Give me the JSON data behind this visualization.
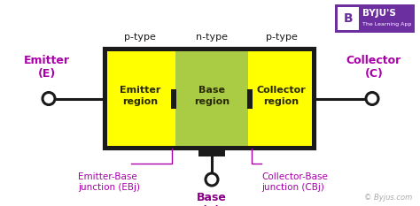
{
  "yellow_color": "#FFFF00",
  "green_color": "#AACC44",
  "black_color": "#1a1a1a",
  "purple_color": "#AA00AA",
  "dark_purple": "#880088",
  "gray_color": "#888888",
  "white_color": "#FFFFFF",
  "byju_purple": "#6B2FA0",
  "watermark": "© Byjus.com",
  "emitter_label": "Emitter\nregion",
  "base_label": "Base\nregion",
  "collector_label": "Collector\nregion",
  "p_type_left": "p-type",
  "n_type": "n-type",
  "p_type_right": "p-type",
  "emitter_text": "Emitter\n(E)",
  "collector_text": "Collector\n(C)",
  "base_text": "Base\n(B)",
  "ebj_text": "Emitter-Base\njunction (EBj)",
  "cbj_text": "Collector-Base\njunction (CBj)"
}
